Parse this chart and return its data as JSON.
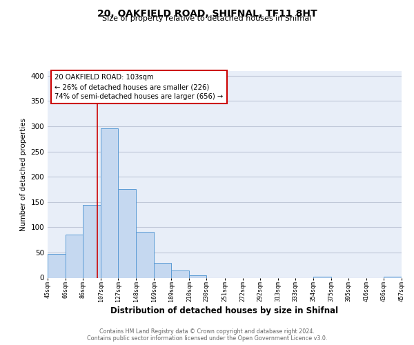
{
  "title_line1": "20, OAKFIELD ROAD, SHIFNAL, TF11 8HT",
  "title_line2": "Size of property relative to detached houses in Shifnal",
  "xlabel": "Distribution of detached houses by size in Shifnal",
  "ylabel": "Number of detached properties",
  "bar_edges": [
    45,
    66,
    86,
    107,
    127,
    148,
    169,
    189,
    210,
    230,
    251,
    272,
    292,
    313,
    333,
    354,
    375,
    395,
    416,
    436,
    457
  ],
  "bar_values": [
    47,
    86,
    144,
    296,
    175,
    91,
    30,
    15,
    5,
    0,
    0,
    0,
    0,
    0,
    0,
    2,
    0,
    0,
    0,
    2
  ],
  "bar_color": "#c5d8f0",
  "bar_edgecolor": "#5b9bd5",
  "property_line_x": 103,
  "property_line_color": "#cc0000",
  "annotation_line1": "20 OAKFIELD ROAD: 103sqm",
  "annotation_line2": "← 26% of detached houses are smaller (226)",
  "annotation_line3": "74% of semi-detached houses are larger (656) →",
  "annotation_box_facecolor": "white",
  "annotation_box_edgecolor": "#cc0000",
  "ylim": [
    0,
    410
  ],
  "yticks": [
    0,
    50,
    100,
    150,
    200,
    250,
    300,
    350,
    400
  ],
  "grid_color": "#c0c8d8",
  "bg_color": "#e8eef8",
  "footer_line1": "Contains HM Land Registry data © Crown copyright and database right 2024.",
  "footer_line2": "Contains public sector information licensed under the Open Government Licence v3.0."
}
